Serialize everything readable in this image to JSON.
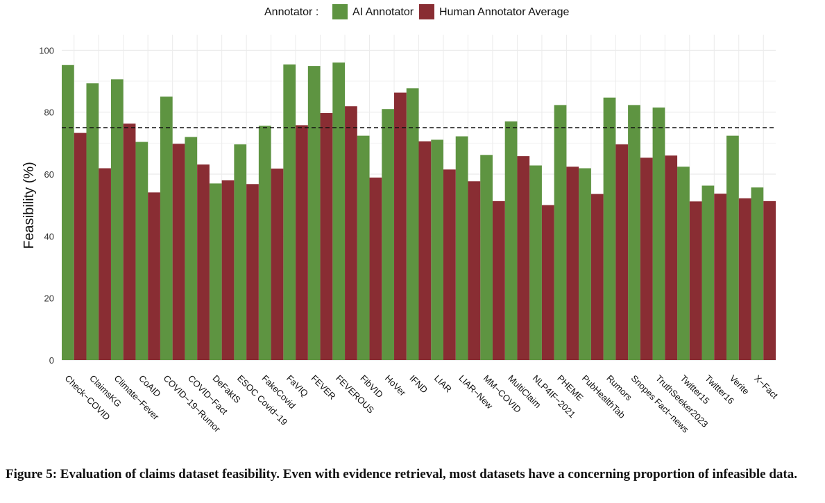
{
  "chart_data": {
    "type": "bar",
    "ylabel": "Feasibility (%)",
    "xlabel": "",
    "ylim": [
      0,
      105
    ],
    "yticks": [
      0,
      20,
      40,
      60,
      80,
      100
    ],
    "grid": true,
    "legend": {
      "title": "Annotator :",
      "position": "top"
    },
    "reference_line": {
      "y": 75,
      "style": "dashed"
    },
    "categories": [
      "Check−COVID",
      "ClaimsKG",
      "Climate−Fever",
      "CoAID",
      "COVID−19−Rumor",
      "COVID−Fact",
      "DeFaktS",
      "ESOC Covid−19",
      "FakeCovid",
      "FaVIQ",
      "FEVER",
      "FEVEROUS",
      "FibVID",
      "HoVer",
      "IFND",
      "LIAR",
      "LIAR−New",
      "MM−COVID",
      "MultiClaim",
      "NLP4IF−2021",
      "PHEME",
      "PubHealthTab",
      "Rumors",
      "Snopes Fact−news",
      "TruthSeeker2023",
      "Twitter15",
      "Twitter16",
      "Verite",
      "X−Fact"
    ],
    "series": [
      {
        "name": "AI Annotator",
        "color": "#5e9441",
        "values": [
          95.2,
          89.3,
          90.6,
          70.4,
          85.0,
          72.0,
          57.0,
          69.6,
          75.6,
          95.4,
          94.9,
          96.0,
          72.4,
          81.0,
          87.7,
          71.1,
          72.2,
          66.2,
          77.0,
          62.8,
          82.3,
          61.9,
          84.7,
          82.3,
          81.5,
          62.4,
          56.3,
          72.4,
          55.7
        ]
      },
      {
        "name": "Human Annotator Average",
        "color": "#892d33",
        "values": [
          73.3,
          61.9,
          76.3,
          54.1,
          69.8,
          63.1,
          58.0,
          56.8,
          61.8,
          75.8,
          79.7,
          81.9,
          58.9,
          86.3,
          70.6,
          61.5,
          57.7,
          51.3,
          65.8,
          50.0,
          62.4,
          53.6,
          69.6,
          65.3,
          66.0,
          51.2,
          53.7,
          52.2,
          51.3
        ]
      }
    ]
  },
  "caption": "Figure 5: Evaluation of claims dataset feasibility. Even with evidence retrieval, most datasets have a concerning proportion of infeasible data."
}
